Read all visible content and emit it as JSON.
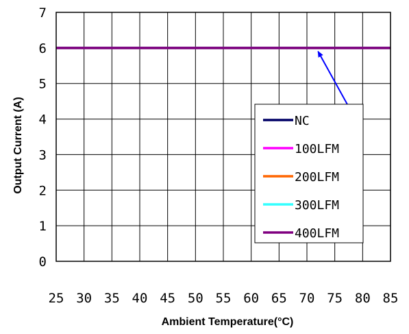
{
  "chart_data": {
    "type": "line",
    "xlabel": "Ambient Temperature(°C)",
    "ylabel": "Output Current (A)",
    "xlim": [
      25,
      85
    ],
    "ylim": [
      0,
      7
    ],
    "x_ticks": [
      "25",
      "30",
      "35",
      "40",
      "45",
      "50",
      "55",
      "60",
      "65",
      "70",
      "75",
      "80",
      "85"
    ],
    "y_ticks": [
      "0",
      "1",
      "2",
      "3",
      "4",
      "5",
      "6",
      "7"
    ],
    "grid": true,
    "legend_position": "right",
    "series": [
      {
        "name": "NC",
        "color": "#000066",
        "x": [
          25,
          85
        ],
        "y": [
          6,
          6
        ]
      },
      {
        "name": "100LFM",
        "color": "#ff00ff",
        "x": [
          25,
          85
        ],
        "y": [
          6,
          6
        ]
      },
      {
        "name": "200LFM",
        "color": "#ff6600",
        "x": [
          25,
          85
        ],
        "y": [
          6,
          6
        ]
      },
      {
        "name": "300LFM",
        "color": "#33ffff",
        "x": [
          25,
          85
        ],
        "y": [
          6,
          6
        ]
      },
      {
        "name": "400LFM",
        "color": "#800080",
        "x": [
          25,
          85
        ],
        "y": [
          6,
          6
        ]
      }
    ],
    "annotation": {
      "type": "arrow",
      "color": "#0000ff",
      "from": [
        78,
        4.2
      ],
      "to": [
        72,
        5.9
      ]
    }
  }
}
